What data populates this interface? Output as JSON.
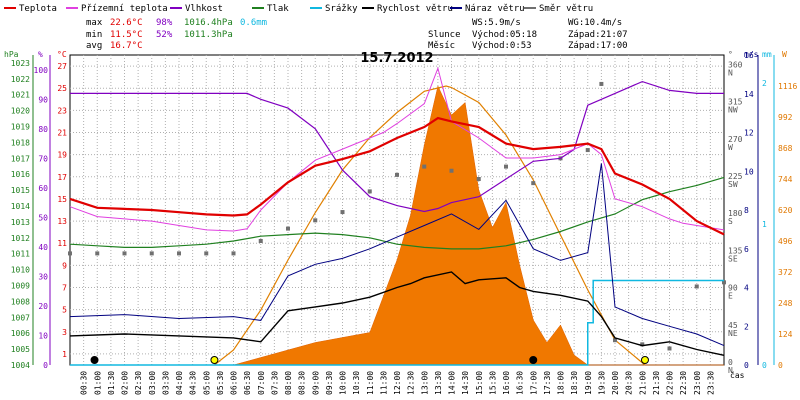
{
  "chart_data": {
    "type": "line",
    "title": "15.7.2012",
    "legend": [
      {
        "label": "Teplota",
        "color": "#e00000"
      },
      {
        "label": "Přízemní teplota",
        "color": "#e040e0"
      },
      {
        "label": "Vlhkost",
        "color": "#8000c0"
      },
      {
        "label": "Tlak",
        "color": "#208020"
      },
      {
        "label": "Srážky",
        "color": "#10b8e0"
      },
      {
        "label": "Rychlost větru",
        "color": "#000000"
      },
      {
        "label": "Náraz větru",
        "color": "#000080"
      },
      {
        "label": "Směr větru",
        "color": "#707070"
      }
    ],
    "stats": {
      "max": {
        "label": "max",
        "temp": "22.6°C",
        "hum": "98%",
        "press": "1016.4hPa",
        "rain": "0.6mm"
      },
      "min": {
        "label": "min",
        "temp": "11.5°C",
        "hum": "52%",
        "press": "1011.3hPa"
      },
      "avg": {
        "label": "avg",
        "temp": "16.7°C"
      }
    },
    "wind_info": {
      "ws": "WS:5.9m/s",
      "wg": "WG:10.4m/s"
    },
    "sun": {
      "label": "Slunce",
      "rise": "Východ:05:18",
      "set": "Západ:21:07"
    },
    "moon": {
      "label": "Měsíc",
      "rise": "Východ:0:53",
      "set": "Západ:17:00"
    },
    "axes": {
      "hpa": {
        "label": "hPa",
        "ticks": [
          1004,
          1005,
          1006,
          1007,
          1008,
          1009,
          1010,
          1011,
          1012,
          1013,
          1014,
          1015,
          1016,
          1017,
          1018,
          1019,
          1020,
          1021,
          1022,
          1023
        ]
      },
      "pct": {
        "label": "%",
        "ticks": [
          0,
          10,
          20,
          30,
          40,
          50,
          60,
          70,
          80,
          90,
          100
        ]
      },
      "degc": {
        "label": "°C",
        "ticks": [
          1,
          3,
          5,
          7,
          9,
          11,
          13,
          15,
          17,
          19,
          21,
          23,
          25,
          27
        ]
      },
      "deg": {
        "label": "°",
        "ticks": [
          0,
          45,
          90,
          135,
          180,
          225,
          270,
          315,
          360
        ],
        "dirs": [
          "N",
          "NE",
          "E",
          "SE",
          "S",
          "SW",
          "W",
          "NW",
          "N"
        ]
      },
      "ms": {
        "label": "m/s",
        "ticks": [
          0,
          2,
          4,
          6,
          8,
          10,
          12,
          14,
          16
        ]
      },
      "mm": {
        "label": "mm",
        "ticks": [
          0,
          1,
          2
        ]
      },
      "w": {
        "label": "W",
        "ticks": [
          0,
          124,
          248,
          372,
          496,
          620,
          744,
          868,
          992,
          1116
        ]
      },
      "time": {
        "label": "čas",
        "ticks": [
          "00:30",
          "01:00",
          "01:30",
          "02:00",
          "02:30",
          "03:00",
          "03:30",
          "04:00",
          "04:30",
          "05:00",
          "05:30",
          "06:00",
          "06:30",
          "07:00",
          "07:30",
          "08:00",
          "08:30",
          "09:00",
          "09:30",
          "10:00",
          "10:30",
          "11:00",
          "11:30",
          "12:00",
          "12:30",
          "13:00",
          "13:30",
          "14:00",
          "14:30",
          "15:00",
          "15:30",
          "16:00",
          "16:30",
          "17:00",
          "17:30",
          "18:00",
          "18:30",
          "19:00",
          "19:30",
          "20:00",
          "20:30",
          "21:00",
          "21:30",
          "22:00",
          "22:30",
          "23:00",
          "23:30"
        ]
      }
    },
    "series": {
      "temperature": {
        "name": "Teplota",
        "unit": "°C",
        "x": [
          0,
          1,
          2,
          3,
          4,
          5,
          6,
          6.5,
          7,
          8,
          9,
          10,
          11,
          12,
          13,
          13.5,
          14,
          15,
          16,
          17,
          18,
          19,
          19.5,
          20,
          21,
          22,
          23,
          24
        ],
        "values": [
          15.0,
          14.2,
          14.1,
          14.0,
          13.8,
          13.6,
          13.5,
          13.6,
          14.5,
          16.5,
          18.0,
          18.6,
          19.3,
          20.5,
          21.5,
          22.3,
          22.0,
          21.5,
          20.0,
          19.5,
          19.7,
          20.0,
          19.5,
          17.3,
          16.3,
          15.0,
          13.0,
          11.8
        ]
      },
      "ground_temperature": {
        "name": "Přízemní teplota",
        "unit": "°C",
        "x": [
          0,
          1,
          2,
          3,
          4,
          5,
          6,
          6.5,
          7,
          8,
          9,
          10,
          11,
          11.5,
          12,
          13,
          13.5,
          14,
          15,
          16,
          17,
          18,
          19,
          19.5,
          20,
          21,
          22,
          22.5,
          23,
          24
        ],
        "values": [
          14.3,
          13.4,
          13.2,
          13.0,
          12.6,
          12.2,
          12.1,
          12.3,
          14.0,
          16.5,
          18.5,
          19.5,
          20.5,
          21.0,
          21.8,
          23.6,
          26.8,
          22.0,
          20.5,
          18.7,
          18.7,
          19.0,
          20.0,
          19.0,
          15.0,
          14.3,
          13.2,
          12.8,
          12.6,
          12.2
        ]
      },
      "humidity": {
        "name": "Vlhkost",
        "unit": "%",
        "x": [
          0,
          2,
          4,
          6.5,
          7,
          8,
          9,
          10,
          11,
          12,
          13,
          13.5,
          14,
          15,
          16,
          17,
          18,
          18.5,
          19,
          20,
          21,
          22,
          23,
          24
        ],
        "values": [
          92,
          92,
          92,
          92,
          90,
          87,
          80,
          66,
          57,
          54,
          52,
          53,
          55,
          57,
          63,
          69,
          70,
          73,
          88,
          92,
          96,
          93,
          92,
          92
        ]
      },
      "pressure": {
        "name": "Tlak",
        "unit": "hPa",
        "x": [
          0,
          1,
          2,
          3,
          4,
          5,
          6,
          7,
          8,
          9,
          10,
          11,
          12,
          13,
          14,
          15,
          16,
          17,
          18,
          19,
          20,
          21,
          22,
          23,
          24
        ],
        "values": [
          1011.6,
          1011.5,
          1011.4,
          1011.4,
          1011.5,
          1011.6,
          1011.8,
          1012.1,
          1012.2,
          1012.3,
          1012.2,
          1012.0,
          1011.6,
          1011.4,
          1011.3,
          1011.3,
          1011.5,
          1011.9,
          1012.4,
          1013.0,
          1013.5,
          1014.4,
          1014.9,
          1015.3,
          1015.8
        ]
      },
      "rain": {
        "name": "Srážky",
        "unit": "mm",
        "x": [
          0,
          18.8,
          19,
          19.2,
          24
        ],
        "values": [
          0,
          0,
          0.3,
          0.6,
          0.6
        ]
      },
      "wind_speed": {
        "name": "Rychlost větru",
        "unit": "m/s",
        "x": [
          0,
          2,
          4,
          6,
          7,
          8,
          9,
          10,
          11,
          12,
          12.5,
          13,
          14,
          14.5,
          15,
          16,
          16.5,
          17,
          18,
          19,
          19.5,
          20,
          21,
          22,
          23,
          24
        ],
        "values": [
          1.5,
          1.6,
          1.5,
          1.4,
          1.2,
          2.8,
          3.0,
          3.2,
          3.5,
          4.0,
          4.2,
          4.5,
          4.8,
          4.2,
          4.4,
          4.5,
          4.0,
          3.8,
          3.6,
          3.3,
          2.5,
          1.4,
          1.0,
          1.2,
          0.8,
          0.5
        ]
      },
      "wind_gust": {
        "name": "Náraz větru",
        "unit": "m/s",
        "x": [
          0,
          2,
          4,
          6,
          7,
          8,
          9,
          10,
          11,
          12,
          13,
          14,
          15,
          16,
          17,
          18,
          19,
          19.5,
          20,
          21,
          22,
          23,
          24
        ],
        "values": [
          2.5,
          2.6,
          2.4,
          2.5,
          2.3,
          4.6,
          5.2,
          5.5,
          6.0,
          6.6,
          7.2,
          7.8,
          7.0,
          8.5,
          6.0,
          5.4,
          5.8,
          10.4,
          3.0,
          2.4,
          2.0,
          1.6,
          1.0
        ]
      },
      "wind_direction": {
        "name": "Směr větru",
        "unit": "°",
        "x": [
          0,
          1,
          2,
          3,
          4,
          5,
          6,
          7,
          8,
          9,
          10,
          11,
          12,
          13,
          14,
          15,
          16,
          17,
          18,
          19,
          19.5,
          20,
          21,
          22,
          23,
          24
        ],
        "values": [
          135,
          135,
          135,
          135,
          135,
          135,
          135,
          150,
          165,
          175,
          185,
          210,
          230,
          240,
          235,
          225,
          240,
          220,
          250,
          260,
          340,
          30,
          25,
          20,
          95,
          100
        ]
      },
      "solar": {
        "name": "Slunce",
        "unit": "W",
        "x": [
          0,
          5,
          6,
          7,
          8,
          9,
          10,
          11,
          12,
          12.5,
          13,
          13.5,
          14,
          14.5,
          15,
          15.5,
          16,
          16.5,
          17,
          17.5,
          18,
          18.5,
          19,
          19.5,
          20,
          21,
          24
        ],
        "values": [
          0,
          0,
          0,
          30,
          60,
          90,
          110,
          130,
          420,
          600,
          880,
          1116,
          1000,
          1050,
          700,
          550,
          650,
          400,
          180,
          90,
          160,
          40,
          0,
          0,
          0,
          0,
          0
        ]
      },
      "solar_clear_sky": {
        "name": "",
        "unit": "W",
        "x": [
          5.3,
          6,
          7,
          8,
          9,
          10,
          11,
          12,
          13,
          13.8,
          14,
          15,
          16,
          17,
          18,
          19,
          20,
          21.1
        ],
        "values": [
          0,
          60,
          220,
          420,
          610,
          780,
          910,
          1010,
          1095,
          1116,
          1110,
          1050,
          920,
          740,
          520,
          300,
          100,
          0
        ]
      }
    },
    "markers": [
      {
        "kind": "sunrise",
        "time": 5.3
      },
      {
        "kind": "sunset",
        "time": 21.1
      },
      {
        "kind": "moonrise",
        "time": 0.9
      },
      {
        "kind": "moonset",
        "time": 17.0
      }
    ]
  }
}
